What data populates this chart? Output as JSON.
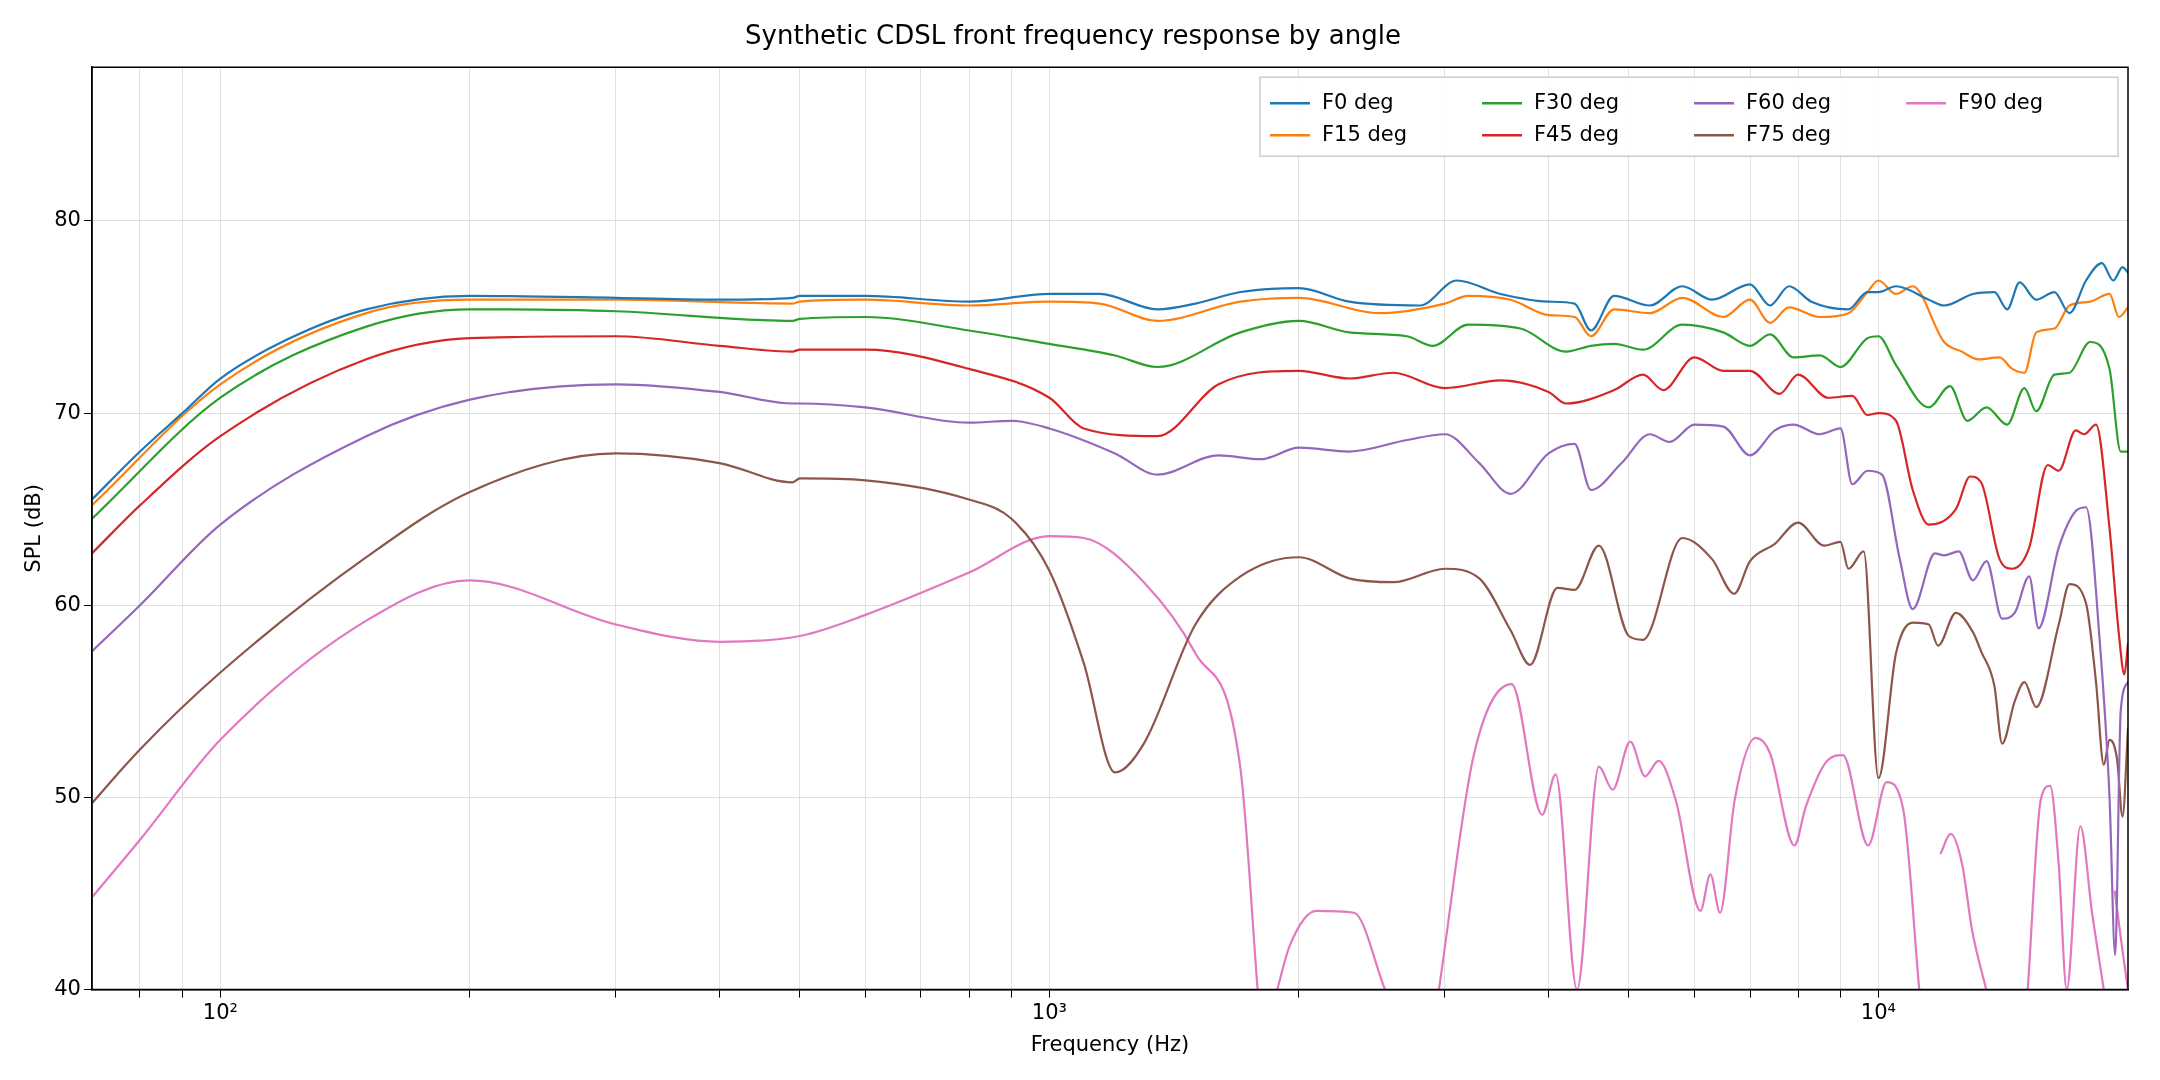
{
  "chart_data": {
    "type": "line",
    "title": "Synthetic CDSL front frequency response by angle",
    "xlabel": "Frequency (Hz)",
    "ylabel": "SPL (dB)",
    "log": "x",
    "grid": true,
    "legend": "top right",
    "marker": "none",
    "line_style": "solid",
    "xlim": [
      70,
      20000
    ],
    "ylim": [
      40,
      88
    ],
    "xticks": [
      {
        "value": 80,
        "label": null
      },
      {
        "value": 90,
        "label": null
      },
      {
        "value": 100,
        "label": "10²"
      },
      {
        "value": 200,
        "label": null
      },
      {
        "value": 300,
        "label": null
      },
      {
        "value": 400,
        "label": null
      },
      {
        "value": 500,
        "label": null
      },
      {
        "value": 600,
        "label": null
      },
      {
        "value": 700,
        "label": null
      },
      {
        "value": 800,
        "label": null
      },
      {
        "value": 900,
        "label": null
      },
      {
        "value": 1000,
        "label": "10³"
      },
      {
        "value": 2000,
        "label": null
      },
      {
        "value": 3000,
        "label": null
      },
      {
        "value": 4000,
        "label": null
      },
      {
        "value": 5000,
        "label": null
      },
      {
        "value": 6000,
        "label": null
      },
      {
        "value": 7000,
        "label": null
      },
      {
        "value": 8000,
        "label": null
      },
      {
        "value": 9000,
        "label": null
      },
      {
        "value": 10000,
        "label": "10⁴"
      }
    ],
    "yticks": [
      40,
      50,
      60,
      70,
      80
    ],
    "series": [
      {
        "name": "F0 deg",
        "color": "#1f77b4",
        "x": [
          70,
          80,
          90,
          100,
          120,
          150,
          200,
          300,
          400,
          490,
          500,
          600,
          800,
          1000,
          1150,
          1350,
          1500,
          1700,
          2000,
          2300,
          2800,
          3100,
          3500,
          4000,
          4300,
          4500,
          4800,
          5300,
          5800,
          6300,
          7000,
          7400,
          7800,
          8300,
          9200,
          9700,
          10000,
          10500,
          11500,
          12000,
          13000,
          13800,
          14300,
          14800,
          15500,
          16300,
          17000,
          17800,
          18600,
          19200,
          19700,
          20000
        ],
        "values": [
          65.5,
          68,
          70,
          71.8,
          73.8,
          75.4,
          76.1,
          76.0,
          75.9,
          76.0,
          76.1,
          76.1,
          75.8,
          76.2,
          76.2,
          75.4,
          75.7,
          76.3,
          76.5,
          75.8,
          75.6,
          76.9,
          76.2,
          75.8,
          75.7,
          74.3,
          76.1,
          75.6,
          76.6,
          75.9,
          76.7,
          75.6,
          76.6,
          75.8,
          75.4,
          76.3,
          76.3,
          76.6,
          75.9,
          75.6,
          76.2,
          76.3,
          75.4,
          76.8,
          75.9,
          76.3,
          75.2,
          76.9,
          77.8,
          76.9,
          77.6,
          77.3
        ]
      },
      {
        "name": "F15 deg",
        "color": "#ff7f0e",
        "x": [
          70,
          100,
          150,
          200,
          300,
          490,
          500,
          600,
          800,
          1000,
          1150,
          1350,
          1700,
          2000,
          2500,
          3000,
          3200,
          3600,
          4000,
          4300,
          4500,
          4800,
          5300,
          5800,
          6500,
          7000,
          7400,
          7800,
          8500,
          9200,
          9700,
          10000,
          10500,
          11000,
          12000,
          12600,
          13200,
          14000,
          14500,
          15000,
          15500,
          16300,
          17000,
          18000,
          19000,
          19500,
          20000
        ],
        "values": [
          65.2,
          71.5,
          75.2,
          75.9,
          75.9,
          75.7,
          75.8,
          75.9,
          75.6,
          75.8,
          75.7,
          74.8,
          75.8,
          76.0,
          75.2,
          75.7,
          76.1,
          75.9,
          75.1,
          75.0,
          74.0,
          75.4,
          75.2,
          76.0,
          75.0,
          75.9,
          74.7,
          75.5,
          75.0,
          75.2,
          76.3,
          76.9,
          76.2,
          76.6,
          73.7,
          73.2,
          72.8,
          72.9,
          72.3,
          72.1,
          74.2,
          74.4,
          75.6,
          75.8,
          76.2,
          75.0,
          75.5
        ]
      },
      {
        "name": "F30 deg",
        "color": "#2ca02c",
        "x": [
          70,
          100,
          150,
          200,
          300,
          490,
          500,
          600,
          800,
          1000,
          1200,
          1350,
          1700,
          2000,
          2300,
          2700,
          2900,
          3200,
          3700,
          4200,
          4500,
          4800,
          5200,
          5800,
          6500,
          7000,
          7400,
          7900,
          8500,
          9000,
          9700,
          10000,
          10500,
          11500,
          12200,
          12800,
          13500,
          14300,
          15000,
          15500,
          16300,
          17000,
          18000,
          19000,
          19600,
          20000
        ],
        "values": [
          64.5,
          70.8,
          74.5,
          75.4,
          75.3,
          74.8,
          74.9,
          75.0,
          74.3,
          73.6,
          73.0,
          72.4,
          74.2,
          74.8,
          74.2,
          74.0,
          73.5,
          74.6,
          74.4,
          73.2,
          73.5,
          73.6,
          73.3,
          74.6,
          74.2,
          73.5,
          74.1,
          72.9,
          73.0,
          72.4,
          73.9,
          74.0,
          72.5,
          70.3,
          71.4,
          69.6,
          70.3,
          69.4,
          71.3,
          70.1,
          72.0,
          72.1,
          73.7,
          72.3,
          68.0,
          68.0
        ]
      },
      {
        "name": "F45 deg",
        "color": "#d62728",
        "x": [
          70,
          80,
          100,
          150,
          200,
          300,
          400,
          490,
          500,
          600,
          800,
          1000,
          1100,
          1350,
          1600,
          2000,
          2300,
          2600,
          3000,
          3500,
          4000,
          4200,
          4800,
          5200,
          5500,
          6000,
          6500,
          7000,
          7600,
          8000,
          8700,
          9300,
          9700,
          10000,
          10500,
          11000,
          11500,
          12400,
          12900,
          13300,
          14000,
          14500,
          15200,
          16000,
          16500,
          17300,
          17700,
          18300,
          19000,
          19500,
          19800,
          20000
        ],
        "values": [
          62.7,
          65.2,
          68.8,
          72.8,
          73.9,
          74.0,
          73.5,
          73.2,
          73.3,
          73.3,
          72.3,
          70.8,
          69.2,
          68.8,
          71.5,
          72.2,
          71.8,
          72.1,
          71.3,
          71.7,
          71.1,
          70.5,
          71.2,
          72.0,
          71.2,
          72.9,
          72.2,
          72.2,
          71.0,
          72.0,
          70.8,
          70.9,
          69.9,
          70.0,
          69.6,
          66.0,
          64.2,
          65.0,
          66.7,
          66.4,
          62.4,
          61.9,
          63.0,
          67.3,
          67.0,
          69.1,
          68.9,
          69.4,
          64.0,
          58.5,
          56.4,
          58.0
        ]
      },
      {
        "name": "F60 deg",
        "color": "#9467bd",
        "x": [
          70,
          80,
          100,
          150,
          200,
          300,
          400,
          490,
          500,
          600,
          800,
          900,
          1000,
          1200,
          1350,
          1600,
          1800,
          2000,
          2300,
          2700,
          3000,
          3300,
          3600,
          4000,
          4300,
          4500,
          4900,
          5300,
          5600,
          6000,
          6500,
          7000,
          7500,
          7900,
          8500,
          9000,
          9300,
          9700,
          10100,
          10600,
          11000,
          11700,
          12000,
          12500,
          13000,
          13500,
          14100,
          14600,
          15200,
          15600,
          16500,
          17300,
          17800,
          18500,
          19000,
          19300,
          19600,
          20000
        ],
        "values": [
          57.6,
          60.0,
          64.2,
          68.8,
          70.7,
          71.5,
          71.1,
          70.5,
          70.5,
          70.3,
          69.5,
          69.6,
          69.2,
          67.9,
          66.8,
          67.8,
          67.6,
          68.2,
          68.0,
          68.6,
          68.9,
          67.4,
          65.8,
          67.9,
          68.4,
          66.0,
          67.4,
          68.9,
          68.5,
          69.4,
          69.3,
          67.8,
          69.1,
          69.4,
          68.9,
          69.2,
          66.3,
          67.0,
          66.8,
          62.5,
          59.8,
          62.7,
          62.6,
          62.8,
          61.3,
          62.3,
          59.3,
          59.6,
          61.5,
          58.8,
          63.0,
          64.9,
          65.1,
          58.0,
          50.0,
          41.8,
          54.5,
          56.0
        ]
      },
      {
        "name": "F75 deg",
        "color": "#8c564b",
        "x": [
          70,
          80,
          100,
          150,
          200,
          300,
          400,
          490,
          500,
          600,
          800,
          900,
          1000,
          1100,
          1200,
          1300,
          1500,
          1700,
          2000,
          2300,
          2600,
          3000,
          3300,
          3600,
          3800,
          4100,
          4300,
          4600,
          5000,
          5200,
          5800,
          6300,
          6700,
          7000,
          7500,
          8000,
          8600,
          9000,
          9200,
          9600,
          10000,
          10500,
          11000,
          11500,
          11800,
          12400,
          13000,
          13300,
          13800,
          14100,
          14600,
          15000,
          15500,
          16500,
          17000,
          17800,
          18300,
          18700,
          19000,
          19400,
          19700,
          20000
        ],
        "values": [
          49.7,
          52.5,
          56.5,
          62.5,
          65.9,
          67.9,
          67.4,
          66.4,
          66.6,
          66.5,
          65.5,
          64.5,
          61.8,
          57.0,
          51.3,
          52.8,
          59.0,
          61.5,
          62.5,
          61.4,
          61.2,
          61.9,
          61.4,
          58.7,
          56.9,
          60.9,
          60.8,
          63.1,
          58.4,
          58.2,
          63.5,
          62.4,
          60.6,
          62.3,
          63.2,
          64.3,
          63.1,
          63.3,
          61.9,
          62.8,
          51.0,
          57.5,
          59.1,
          59.0,
          57.9,
          59.6,
          58.6,
          57.6,
          55.8,
          52.8,
          55.0,
          56.0,
          54.7,
          59.0,
          61.1,
          60.1,
          56.0,
          51.7,
          53.0,
          52.0,
          49.0,
          53.6
        ]
      },
      {
        "name": "F90 deg",
        "color": "#e377c2",
        "x": [
          70,
          80,
          100,
          150,
          200,
          300,
          400,
          500,
          600,
          800,
          1000,
          1100,
          1300,
          1500,
          1700,
          1783,
          1830,
          1883,
          1950,
          2100,
          2330,
          2540,
          2700,
          2950,
          3250,
          3610,
          3930,
          4080,
          4330,
          4600,
          4780,
          5020,
          5230,
          5430,
          5700,
          6100,
          6270,
          6440,
          6710,
          7110,
          7400,
          7920,
          8170,
          8670,
          9060,
          9720,
          10230,
          10710,
          11200,
          11500,
          11890,
          12220,
          12620,
          12970,
          13490,
          14300,
          15140,
          15700,
          16110,
          16500,
          16870,
          17520,
          18100,
          18700,
          19000,
          19280,
          19700,
          20000
        ],
        "values": [
          44.8,
          47.8,
          53.0,
          59.2,
          61.3,
          59.0,
          58.1,
          58.4,
          59.5,
          61.7,
          63.6,
          63.5,
          61.2,
          57.5,
          51.5,
          40,
          null,
          40,
          42.3,
          44.1,
          44.0,
          40,
          null,
          40,
          52.2,
          55.9,
          49.1,
          51.2,
          40,
          51.6,
          50.4,
          52.9,
          51.1,
          51.9,
          49.8,
          44.1,
          46.0,
          44.0,
          49.9,
          53.1,
          52.3,
          47.5,
          49.5,
          51.9,
          52.2,
          47.5,
          50.8,
          49.4,
          40,
          null,
          47.1,
          48.1,
          46.5,
          43.1,
          40,
          null,
          40,
          49.9,
          50.6,
          46.5,
          40,
          48.5,
          44.0,
          40,
          null,
          45.1,
          42.0,
          40
        ]
      }
    ]
  }
}
